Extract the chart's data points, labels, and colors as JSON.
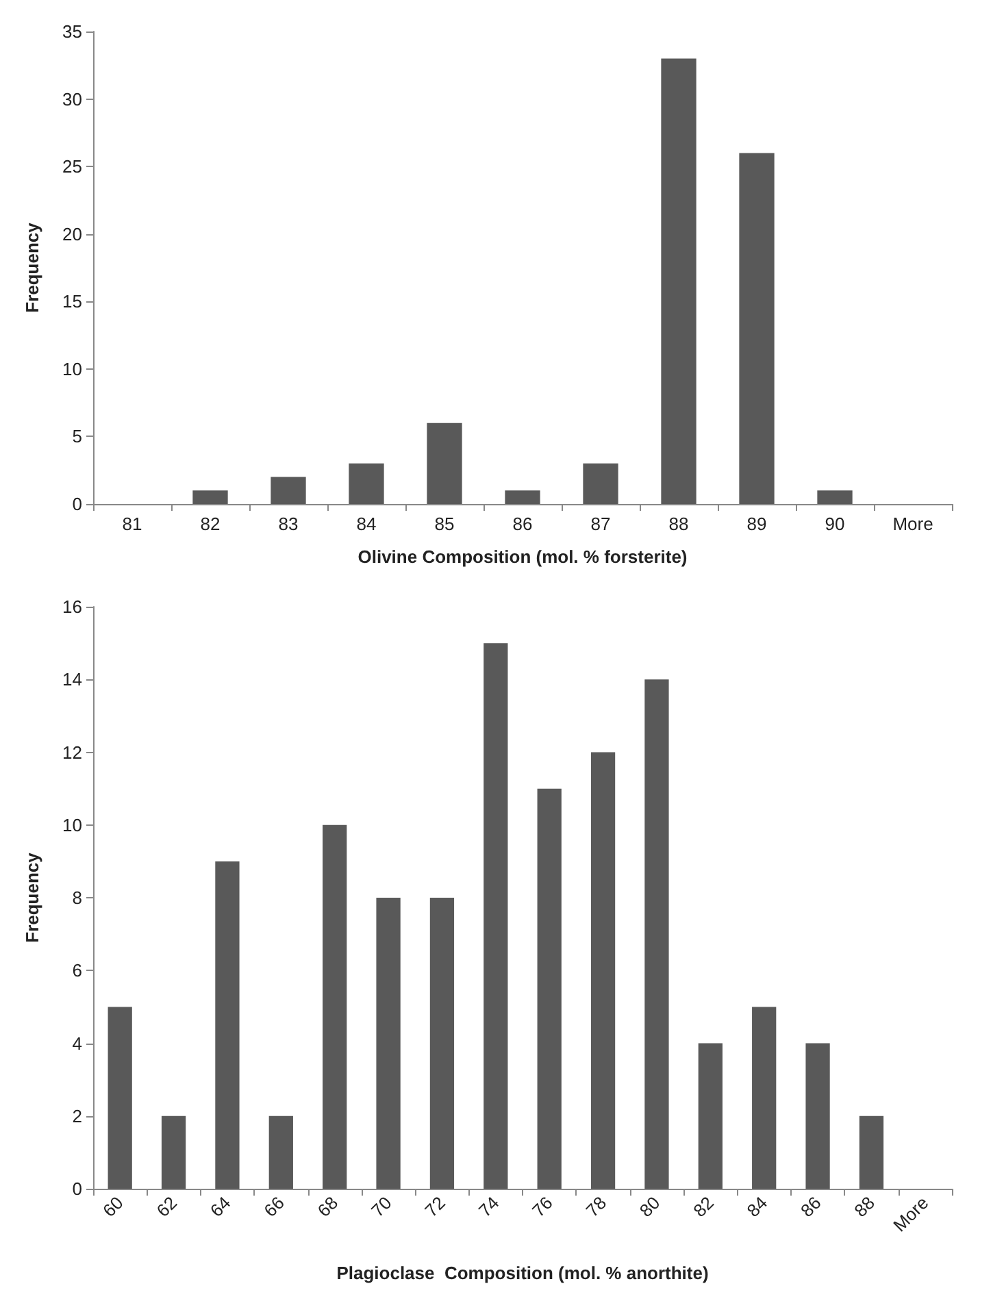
{
  "chart_data": [
    {
      "type": "bar",
      "xlabel": "Olivine Composition (mol. % forsterite)",
      "ylabel": "Frequency",
      "categories": [
        "81",
        "82",
        "83",
        "84",
        "85",
        "86",
        "87",
        "88",
        "89",
        "90",
        "More"
      ],
      "values": [
        0,
        1,
        2,
        3,
        6,
        1,
        3,
        33,
        26,
        1,
        0
      ],
      "color": "#595959",
      "ylim": [
        0,
        35
      ],
      "yticks": [
        0,
        5,
        10,
        15,
        20,
        25,
        30,
        35
      ],
      "grid": false
    },
    {
      "type": "bar",
      "xlabel": "Plagioclase  Composition (mol. % anorthite)",
      "ylabel": "Frequency",
      "categories": [
        "60",
        "62",
        "64",
        "66",
        "68",
        "70",
        "72",
        "74",
        "76",
        "78",
        "80",
        "82",
        "84",
        "86",
        "88",
        "More"
      ],
      "values": [
        5,
        2,
        9,
        2,
        10,
        8,
        8,
        15,
        11,
        12,
        14,
        4,
        5,
        4,
        2,
        0
      ],
      "color": "#595959",
      "ylim": [
        0,
        16
      ],
      "yticks": [
        0,
        2,
        4,
        6,
        8,
        10,
        12,
        14,
        16
      ],
      "grid": false
    }
  ]
}
